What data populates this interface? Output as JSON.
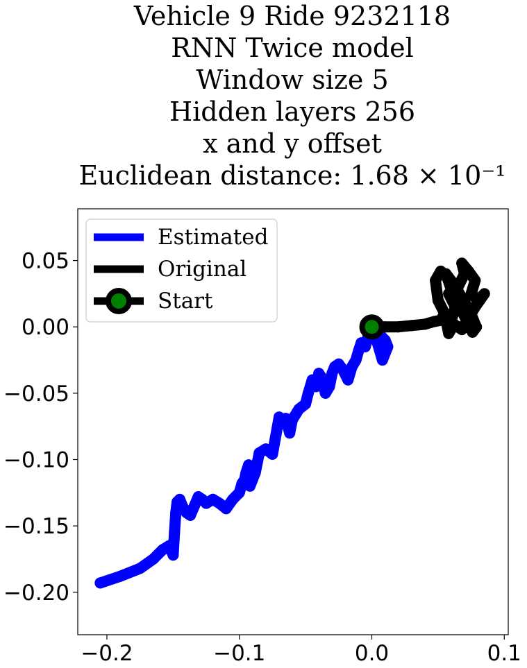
{
  "chart_data": {
    "type": "line",
    "title_lines": [
      "Vehicle 9 Ride 9232118",
      "RNN Twice model",
      "Window size 5",
      "Hidden layers 256",
      "x and y offset",
      "Euclidean distance: 1.68 × 10⁻¹"
    ],
    "xlabel": "",
    "ylabel": "",
    "xlim": [
      -0.222,
      0.103
    ],
    "ylim": [
      -0.232,
      0.089
    ],
    "xticks": [
      -0.2,
      -0.1,
      0.0,
      0.1
    ],
    "xtick_labels": [
      "−0.2",
      "−0.1",
      "0.0",
      "0.1"
    ],
    "yticks": [
      0.05,
      0.0,
      -0.05,
      -0.1,
      -0.15,
      -0.2
    ],
    "ytick_labels": [
      "0.05",
      "0.00",
      "−0.05",
      "−0.10",
      "−0.15",
      "−0.20"
    ],
    "grid": false,
    "legend_position": "top-left",
    "legend": [
      "Estimated",
      "Original",
      "Start"
    ],
    "series": [
      {
        "name": "Estimated",
        "color": "#0000ff",
        "x": [
          -0.205,
          -0.19,
          -0.175,
          -0.165,
          -0.158,
          -0.153,
          -0.15,
          -0.149,
          -0.148,
          -0.147,
          -0.145,
          -0.143,
          -0.14,
          -0.137,
          -0.134,
          -0.131,
          -0.128,
          -0.125,
          -0.12,
          -0.115,
          -0.11,
          -0.105,
          -0.1,
          -0.098,
          -0.096,
          -0.095,
          -0.093,
          -0.092,
          -0.09,
          -0.088,
          -0.085,
          -0.08,
          -0.075,
          -0.073,
          -0.07,
          -0.068,
          -0.065,
          -0.062,
          -0.06,
          -0.055,
          -0.05,
          -0.048,
          -0.045,
          -0.042,
          -0.04,
          -0.038,
          -0.035,
          -0.032,
          -0.03,
          -0.028,
          -0.025,
          -0.022,
          -0.018,
          -0.015,
          -0.012,
          -0.01,
          -0.008,
          -0.005,
          -0.003,
          -0.001,
          0.003,
          0.008,
          0.012,
          0.01,
          0.006,
          0.002,
          0.0
        ],
        "y": [
          -0.193,
          -0.188,
          -0.182,
          -0.175,
          -0.168,
          -0.165,
          -0.172,
          -0.155,
          -0.14,
          -0.132,
          -0.13,
          -0.135,
          -0.14,
          -0.142,
          -0.135,
          -0.128,
          -0.13,
          -0.133,
          -0.13,
          -0.133,
          -0.137,
          -0.13,
          -0.125,
          -0.118,
          -0.115,
          -0.11,
          -0.104,
          -0.12,
          -0.115,
          -0.11,
          -0.095,
          -0.092,
          -0.096,
          -0.085,
          -0.068,
          -0.07,
          -0.069,
          -0.08,
          -0.07,
          -0.062,
          -0.058,
          -0.05,
          -0.04,
          -0.045,
          -0.035,
          -0.038,
          -0.05,
          -0.045,
          -0.035,
          -0.03,
          -0.028,
          -0.032,
          -0.04,
          -0.03,
          -0.025,
          -0.018,
          -0.012,
          -0.015,
          -0.008,
          -0.004,
          -0.008,
          -0.025,
          -0.015,
          -0.01,
          -0.006,
          -0.003,
          0.0
        ]
      },
      {
        "name": "Original",
        "color": "#000000",
        "x": [
          0.0,
          0.01,
          0.02,
          0.03,
          0.04,
          0.047,
          0.052,
          0.055,
          0.06,
          0.063,
          0.058,
          0.065,
          0.07,
          0.068,
          0.073,
          0.078,
          0.075,
          0.08,
          0.085,
          0.078,
          0.072,
          0.068,
          0.062,
          0.058,
          0.055,
          0.05,
          0.048,
          0.052,
          0.057,
          0.062,
          0.066,
          0.071,
          0.075,
          0.079,
          0.076,
          0.07,
          0.065,
          0.06,
          0.056,
          0.062,
          0.068,
          0.074,
          0.078
        ],
        "y": [
          0.0,
          0.0,
          0.0,
          0.001,
          0.002,
          0.004,
          0.005,
          0.01,
          0.005,
          0.015,
          0.025,
          0.03,
          0.04,
          0.048,
          0.042,
          0.035,
          0.025,
          0.02,
          0.025,
          0.015,
          0.005,
          -0.002,
          0.002,
          -0.005,
          0.01,
          0.02,
          0.035,
          0.042,
          0.038,
          0.03,
          0.02,
          0.012,
          0.005,
          0.0,
          -0.004,
          0.008,
          0.018,
          0.028,
          0.04,
          0.032,
          0.022,
          0.012,
          0.002
        ]
      }
    ],
    "start_point": {
      "label": "Start",
      "x": 0.0,
      "y": 0.0,
      "fill": "#008000",
      "edge": "#000000"
    }
  }
}
